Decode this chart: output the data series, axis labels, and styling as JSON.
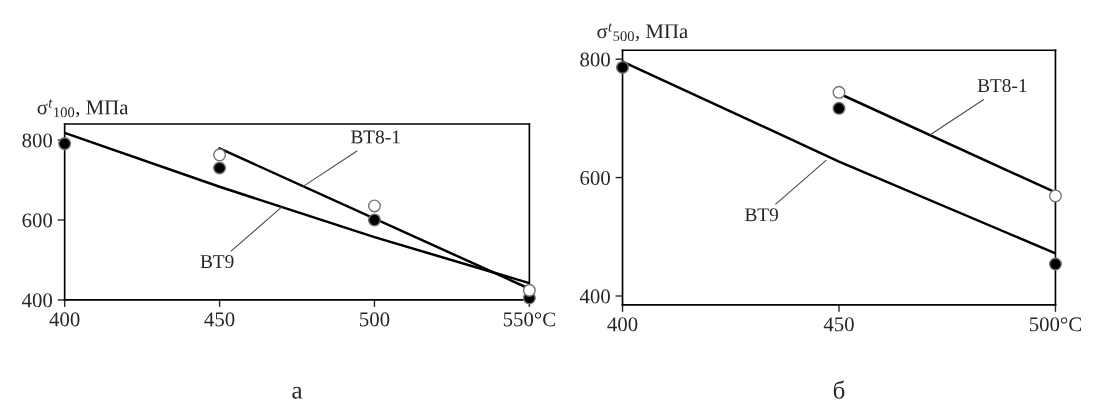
{
  "chart_data": [
    {
      "type": "scatter",
      "ylabel": "σ$^{t}$$_{100}$, МПа",
      "xlim": [
        400,
        550
      ],
      "ylim": [
        400,
        840
      ],
      "xticks": [
        400,
        450,
        500,
        {
          "value": 550,
          "label": "550°C"
        }
      ],
      "yticks": [
        400,
        600,
        800
      ],
      "grid": false,
      "series": [
        {
          "type": "line",
          "color": "#000000",
          "x": [
            400,
            450,
            500,
            550
          ],
          "values": [
            818,
            683,
            557,
            442
          ]
        },
        {
          "type": "line",
          "color": "#000000",
          "x": [
            450,
            550
          ],
          "values": [
            779,
            428
          ]
        },
        {
          "marker": "circle",
          "color": "#000000",
          "x": [
            400,
            450,
            500,
            550
          ],
          "values": [
            791,
            730,
            600,
            405
          ]
        },
        {
          "marker": "circle",
          "color": "#ffffff",
          "x": [
            450,
            500,
            550
          ],
          "values": [
            763,
            635,
            424
          ]
        }
      ],
      "annotations": [
        {
          "text": "ВТ8-1",
          "x": 477,
          "y": 684
        },
        {
          "text": "ВТ9",
          "x": 470,
          "y": 632
        },
        "а"
      ]
    },
    {
      "type": "scatter",
      "ylabel": "σ$^{t}$$_{500}$, МПа",
      "xlim": [
        400,
        500
      ],
      "ylim": [
        385,
        815
      ],
      "xticks": [
        400,
        450,
        {
          "value": 500,
          "label": "500°C"
        }
      ],
      "yticks": [
        400,
        600,
        800
      ],
      "grid": false,
      "series": [
        {
          "type": "line",
          "color": "#000000",
          "x": [
            400,
            450,
            500
          ],
          "values": [
            796,
            627,
            472
          ]
        },
        {
          "type": "line",
          "color": "#000000",
          "x": [
            450,
            500
          ],
          "values": [
            742,
            575
          ]
        },
        {
          "marker": "circle",
          "color": "#000000",
          "x": [
            400,
            450,
            500
          ],
          "values": [
            786,
            717,
            454
          ]
        },
        {
          "marker": "circle",
          "color": "#ffffff",
          "x": [
            450,
            500
          ],
          "values": [
            744,
            569
          ]
        }
      ],
      "annotations": [
        {
          "text": "ВТ8-1",
          "x": 471,
          "y": 672
        },
        {
          "text": "ВТ9",
          "x": 447,
          "y": 629
        },
        "б"
      ]
    }
  ]
}
